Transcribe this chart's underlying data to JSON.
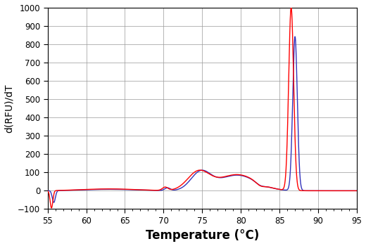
{
  "title": "",
  "xlabel": "Temperature (°C)",
  "ylabel": "d(RFU)/dT",
  "xlim": [
    55,
    95
  ],
  "ylim": [
    -100,
    1000
  ],
  "xticks": [
    55,
    60,
    65,
    70,
    75,
    80,
    85,
    90,
    95
  ],
  "yticks": [
    -100,
    0,
    100,
    200,
    300,
    400,
    500,
    600,
    700,
    800,
    900,
    1000
  ],
  "grid_color": "#999999",
  "red_color": "#ff0000",
  "blue_color": "#3333bb",
  "background_color": "#ffffff",
  "xlabel_fontsize": 12,
  "ylabel_fontsize": 10,
  "linewidth": 1.0
}
